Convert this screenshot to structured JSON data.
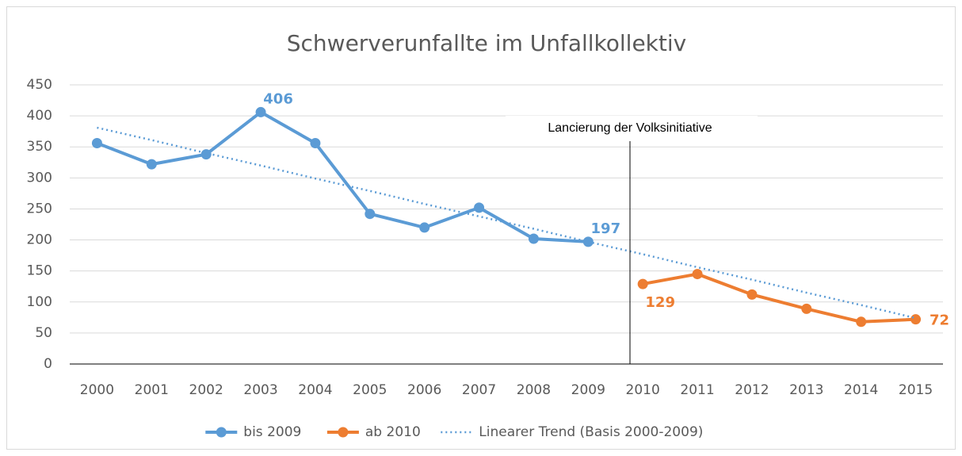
{
  "chart_data": {
    "type": "line",
    "title": "Schwerverunfallte im Unfallkollektiv",
    "categories": [
      "2000",
      "2001",
      "2002",
      "2003",
      "2004",
      "2005",
      "2006",
      "2007",
      "2008",
      "2009",
      "2010",
      "2011",
      "2012",
      "2013",
      "2014",
      "2015"
    ],
    "series": [
      {
        "name": "bis 2009",
        "color": "#5b9bd5",
        "style": "solid",
        "markers": true,
        "values": [
          356,
          322,
          338,
          406,
          356,
          242,
          220,
          252,
          202,
          197,
          null,
          null,
          null,
          null,
          null,
          null
        ],
        "value_labels": [
          null,
          null,
          null,
          "406",
          null,
          null,
          null,
          null,
          null,
          "197",
          null,
          null,
          null,
          null,
          null,
          null
        ]
      },
      {
        "name": "ab 2010",
        "color": "#ed7d31",
        "style": "solid",
        "markers": true,
        "values": [
          null,
          null,
          null,
          null,
          null,
          null,
          null,
          null,
          null,
          null,
          129,
          145,
          112,
          89,
          68,
          72
        ],
        "value_labels": [
          null,
          null,
          null,
          null,
          null,
          null,
          null,
          null,
          null,
          null,
          "129",
          null,
          null,
          null,
          null,
          "72"
        ]
      },
      {
        "name": "Linearer Trend (Basis 2000-2009)",
        "color": "#5b9bd5",
        "style": "dotted",
        "markers": false,
        "values": [
          381,
          361,
          340,
          320,
          299,
          279,
          258,
          238,
          218,
          197,
          177,
          156,
          136,
          115,
          95,
          74
        ]
      }
    ],
    "annotation": "Lancierung der Volksinitiative",
    "ylim": [
      0,
      450
    ],
    "yticks": [
      0,
      50,
      100,
      150,
      200,
      250,
      300,
      350,
      400,
      450
    ],
    "grid": true,
    "legend": "bottom"
  }
}
